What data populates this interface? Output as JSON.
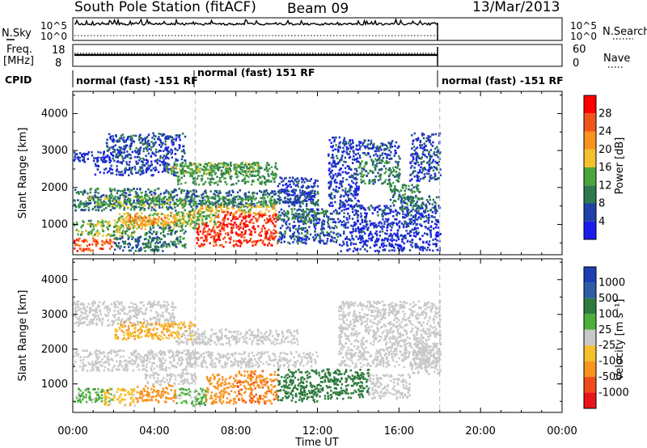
{
  "header": {
    "station": "South Pole Station (fitACF)",
    "beam": "Beam 09",
    "date": "13/Mar/2013"
  },
  "nsky_panel": {
    "label": "N.Sky",
    "right_label": "N.Search",
    "ticks": [
      "10^5",
      "10^0"
    ]
  },
  "freq_panel": {
    "label_line1": "Freq.",
    "label_line2": "[MHz]",
    "left_ticks": [
      "18",
      "8"
    ],
    "right_ticks": [
      "60",
      "0"
    ],
    "right_label": "Nave"
  },
  "cpid": {
    "label": "CPID",
    "segments": [
      {
        "text": "normal (fast) -151 RF",
        "start": 0.0,
        "end": 6.0
      },
      {
        "text": "normal (fast) 151 RF",
        "start": 6.0,
        "end": 18.0
      },
      {
        "text": "normal (fast) -151 RF",
        "start": 18.0,
        "end": 24.0
      }
    ]
  },
  "x_axis": {
    "label": "Time UT",
    "tick_labels": [
      "00:00",
      "04:00",
      "08:00",
      "12:00",
      "16:00",
      "20:00",
      "00:00"
    ]
  },
  "power_colorbar": {
    "label": "Power [dB]",
    "tick_labels": [
      "28",
      "24",
      "20",
      "16",
      "12",
      "8",
      "4"
    ],
    "colors": [
      "#1b1bf0",
      "#2041a8",
      "#2c7a4d",
      "#4aa63e",
      "#f2c12b",
      "#f7931e",
      "#f0561a",
      "#ff0000"
    ]
  },
  "velocity_colorbar": {
    "label": "Velocity [m s⁻¹]",
    "tick_labels": [
      "1000",
      "500",
      "100",
      "25",
      "-25",
      "-100",
      "-500",
      "-1000"
    ],
    "colors": [
      "#1d3fb3",
      "#2d5da6",
      "#2e7a3e",
      "#4caf3c",
      "#c8c8c8",
      "#f5c02a",
      "#f7931e",
      "#f04b1a",
      "#e8141a"
    ]
  },
  "chart_data": [
    {
      "type": "heatmap",
      "title": "",
      "xlabel": "Time UT",
      "ylabel": "Slant Range [km]",
      "xlim": [
        0,
        24
      ],
      "ylim": [
        180,
        4600
      ],
      "yticks": [
        1000,
        2000,
        3000,
        4000
      ],
      "colorbar": "Power [dB]",
      "data_end_hour": 18.0,
      "scatter_bands": [
        {
          "t0": 0.0,
          "t1": 2.0,
          "r0": 2700,
          "r1": 3000,
          "value": 4
        },
        {
          "t0": 1.6,
          "t1": 5.5,
          "r0": 2750,
          "r1": 3500,
          "value": 6
        },
        {
          "t0": 1.0,
          "t1": 5.0,
          "r0": 2350,
          "r1": 2750,
          "value": 5
        },
        {
          "t0": 5.0,
          "t1": 10.0,
          "r0": 2100,
          "r1": 2700,
          "value": 12
        },
        {
          "t0": 4.5,
          "t1": 9.0,
          "r0": 2400,
          "r1": 2700,
          "value": 14
        },
        {
          "t0": 0.0,
          "t1": 6.0,
          "r0": 1400,
          "r1": 2000,
          "value": 9
        },
        {
          "t0": 0.5,
          "t1": 5.5,
          "r0": 1500,
          "r1": 1800,
          "value": 14
        },
        {
          "t0": 5.5,
          "t1": 12.0,
          "r0": 1500,
          "r1": 1950,
          "value": 8
        },
        {
          "t0": 5.5,
          "t1": 10.0,
          "r0": 1550,
          "r1": 1800,
          "value": 12
        },
        {
          "t0": 10.0,
          "t1": 12.0,
          "r0": 1600,
          "r1": 2300,
          "value": 5
        },
        {
          "t0": 0.0,
          "t1": 3.0,
          "r0": 700,
          "r1": 1150,
          "value": 14
        },
        {
          "t0": 2.0,
          "t1": 6.0,
          "r0": 900,
          "r1": 1350,
          "value": 18
        },
        {
          "t0": 2.5,
          "t1": 5.0,
          "r0": 1000,
          "r1": 1250,
          "value": 22
        },
        {
          "t0": 5.0,
          "t1": 7.0,
          "r0": 950,
          "r1": 1400,
          "value": 14
        },
        {
          "t0": 0.0,
          "t1": 2.0,
          "r0": 300,
          "r1": 650,
          "value": 26
        },
        {
          "t0": 2.0,
          "t1": 4.5,
          "r0": 300,
          "r1": 700,
          "value": 8
        },
        {
          "t0": 3.5,
          "t1": 5.5,
          "r0": 400,
          "r1": 1000,
          "value": 10
        },
        {
          "t0": 6.0,
          "t1": 7.0,
          "r0": 400,
          "r1": 1100,
          "value": 28
        },
        {
          "t0": 7.0,
          "t1": 8.5,
          "r0": 400,
          "r1": 1400,
          "value": 28
        },
        {
          "t0": 8.5,
          "t1": 10.0,
          "r0": 450,
          "r1": 1350,
          "value": 28
        },
        {
          "t0": 6.0,
          "t1": 10.0,
          "r0": 1300,
          "r1": 1550,
          "value": 18
        },
        {
          "t0": 10.0,
          "t1": 13.0,
          "r0": 500,
          "r1": 1450,
          "value": 6
        },
        {
          "t0": 10.0,
          "t1": 12.5,
          "r0": 1150,
          "r1": 1400,
          "value": 11
        },
        {
          "t0": 13.0,
          "t1": 18.0,
          "r0": 800,
          "r1": 1550,
          "value": 5
        },
        {
          "t0": 12.5,
          "t1": 14.0,
          "r0": 1500,
          "r1": 3400,
          "value": 5
        },
        {
          "t0": 14.0,
          "t1": 16.0,
          "r0": 2100,
          "r1": 2800,
          "value": 10
        },
        {
          "t0": 14.0,
          "t1": 16.0,
          "r0": 2800,
          "r1": 3300,
          "value": 6
        },
        {
          "t0": 15.5,
          "t1": 17.0,
          "r0": 1600,
          "r1": 2100,
          "value": 11
        },
        {
          "t0": 16.5,
          "t1": 18.0,
          "r0": 2200,
          "r1": 3500,
          "value": 6
        },
        {
          "t0": 16.0,
          "t1": 18.0,
          "r0": 1400,
          "r1": 1800,
          "value": 9
        },
        {
          "t0": 13.0,
          "t1": 18.0,
          "r0": 300,
          "r1": 800,
          "value": 4
        }
      ]
    },
    {
      "type": "heatmap",
      "title": "",
      "xlabel": "Time UT",
      "ylabel": "Slant Range [km]",
      "xlim": [
        0,
        24
      ],
      "ylim": [
        180,
        4600
      ],
      "yticks": [
        1000,
        2000,
        3000,
        4000
      ],
      "colorbar": "Velocity [m s⁻¹]",
      "data_end_hour": 18.0,
      "scatter_bands": [
        {
          "t0": 0.0,
          "t1": 5.0,
          "r0": 2700,
          "r1": 3400,
          "value": 0
        },
        {
          "t0": 2.0,
          "t1": 6.0,
          "r0": 2300,
          "r1": 2800,
          "value": -90
        },
        {
          "t0": 5.0,
          "t1": 11.0,
          "r0": 2150,
          "r1": 2600,
          "value": 0
        },
        {
          "t0": 0.0,
          "t1": 6.0,
          "r0": 1400,
          "r1": 2000,
          "value": 0
        },
        {
          "t0": 5.5,
          "t1": 12.0,
          "r0": 1500,
          "r1": 1950,
          "value": 0
        },
        {
          "t0": 0.0,
          "t1": 2.0,
          "r0": 500,
          "r1": 900,
          "value": 60
        },
        {
          "t0": 1.5,
          "t1": 3.0,
          "r0": 400,
          "r1": 900,
          "value": -60
        },
        {
          "t0": 3.0,
          "t1": 5.0,
          "r0": 500,
          "r1": 1000,
          "value": -300
        },
        {
          "t0": 3.5,
          "t1": 6.0,
          "r0": 1000,
          "r1": 1350,
          "value": 0
        },
        {
          "t0": 5.0,
          "t1": 6.5,
          "r0": 400,
          "r1": 900,
          "value": 60
        },
        {
          "t0": 6.5,
          "t1": 8.0,
          "r0": 450,
          "r1": 1300,
          "value": -200
        },
        {
          "t0": 8.0,
          "t1": 10.0,
          "r0": 450,
          "r1": 1400,
          "value": -400
        },
        {
          "t0": 10.0,
          "t1": 12.0,
          "r0": 500,
          "r1": 1450,
          "value": 200
        },
        {
          "t0": 12.0,
          "t1": 14.5,
          "r0": 600,
          "r1": 1450,
          "value": 200
        },
        {
          "t0": 14.5,
          "t1": 16.5,
          "r0": 600,
          "r1": 1300,
          "value": 0
        },
        {
          "t0": 13.0,
          "t1": 18.0,
          "r0": 1500,
          "r1": 3400,
          "value": 0
        },
        {
          "t0": 16.5,
          "t1": 18.0,
          "r0": 1300,
          "r1": 2200,
          "value": 0
        }
      ]
    }
  ]
}
